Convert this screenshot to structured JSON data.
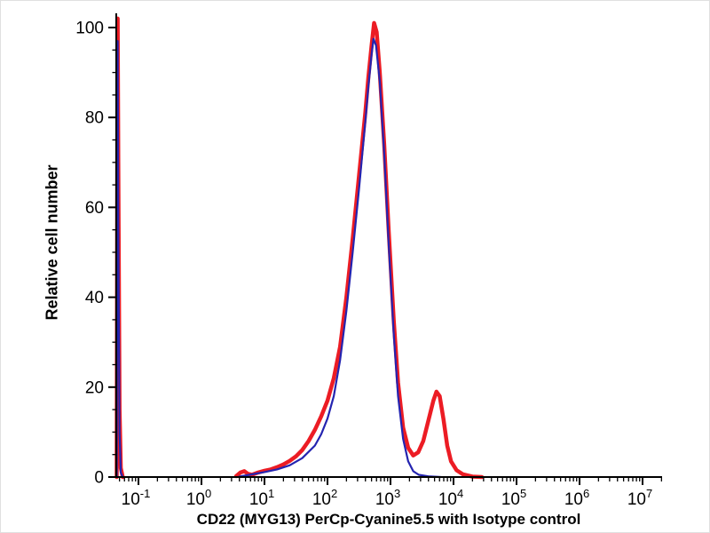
{
  "chart_data": {
    "type": "line",
    "subtype": "flow-cytometry-histogram",
    "title": "",
    "xlabel": "CD22 (MYG13) PerCp-Cyanine5.5 with Isotype control",
    "ylabel": "Relative cell number",
    "x_scale": "log10",
    "x_range_log": [
      -1.35,
      7.3
    ],
    "x_tick_exponents": [
      -1,
      0,
      1,
      2,
      3,
      4,
      5,
      6,
      7
    ],
    "x_tick_base": "10",
    "ylim": [
      0,
      100
    ],
    "y_ticks": [
      0,
      20,
      40,
      60,
      80,
      100
    ],
    "y_minor_step": 5,
    "grid": false,
    "legend": "none",
    "background_color": "#ffffff",
    "axis_color": "#000000",
    "series": [
      {
        "key": "cd22-percp-cy5-5",
        "name": "CD22 (MYG13) PerCp-Cyanine5.5",
        "color": "#ec1c24",
        "stroke_width": 4.5,
        "segments": [
          {
            "x": [
              -1.345,
              -1.335,
              -1.33,
              -1.32,
              -1.3,
              -1.28,
              -1.25
            ],
            "y": [
              0,
              80,
              102,
              70,
              15,
              2,
              0
            ]
          },
          {
            "x": [
              0.55,
              0.62,
              0.68,
              0.74,
              0.8,
              0.9,
              1.0,
              1.1,
              1.2,
              1.3,
              1.4,
              1.5,
              1.6,
              1.7,
              1.8,
              1.9,
              2.0,
              2.1,
              2.2,
              2.3,
              2.4,
              2.5,
              2.6,
              2.65,
              2.7,
              2.74,
              2.78,
              2.83,
              2.9,
              2.97,
              3.05,
              3.12,
              3.2,
              3.28,
              3.36,
              3.44,
              3.52,
              3.6,
              3.68,
              3.73,
              3.78,
              3.84,
              3.9,
              3.96,
              4.05,
              4.15,
              4.3,
              4.45
            ],
            "y": [
              0.2,
              1.0,
              1.3,
              0.7,
              0.5,
              1.0,
              1.4,
              1.7,
              2.2,
              2.8,
              3.6,
              4.6,
              6,
              8,
              10.5,
              13.5,
              17,
              22,
              29,
              40,
              53,
              67,
              81,
              89,
              96,
              101,
              99,
              90,
              74,
              55,
              35,
              21,
              11,
              6.5,
              4.8,
              5.5,
              8,
              12.5,
              17,
              19,
              18,
              13,
              7,
              3.5,
              1.5,
              0.6,
              0.1,
              0
            ]
          }
        ]
      },
      {
        "key": "isotype-control",
        "name": "Isotype control",
        "color": "#2424b0",
        "stroke_width": 2.2,
        "segments": [
          {
            "x": [
              -1.345,
              -1.335,
              -1.33,
              -1.32,
              -1.3,
              -1.28,
              -1.25
            ],
            "y": [
              0,
              60,
              97,
              55,
              10,
              1,
              0
            ]
          },
          {
            "x": [
              0.6,
              0.8,
              1.0,
              1.2,
              1.4,
              1.6,
              1.8,
              1.9,
              2.0,
              2.1,
              2.2,
              2.3,
              2.4,
              2.5,
              2.6,
              2.65,
              2.7,
              2.73,
              2.77,
              2.83,
              2.9,
              2.97,
              3.05,
              3.12,
              3.2,
              3.28,
              3.36,
              3.45,
              3.6,
              3.8
            ],
            "y": [
              0.1,
              0.6,
              1.1,
              1.7,
              2.6,
              4.2,
              7,
              9.5,
              13,
              18,
              26,
              37,
              50,
              64,
              79,
              87,
              94,
              97.5,
              96,
              88,
              72,
              52,
              32,
              18,
              8.5,
              3.5,
              1.3,
              0.5,
              0.15,
              0
            ]
          }
        ]
      }
    ]
  }
}
